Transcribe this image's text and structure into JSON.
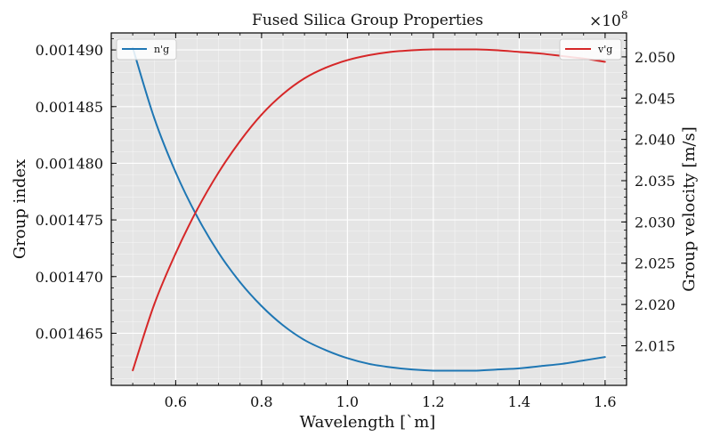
{
  "chart_data": {
    "type": "line",
    "title": "Fused Silica Group Properties",
    "xlabel": "Wavelength [`m]",
    "ylabel_left": "Group index",
    "ylabel_right": "Group velocity [m/s]",
    "right_axis_multiplier": "×10",
    "right_axis_exponent": "8",
    "xlim": [
      0.45,
      1.65
    ],
    "ylim_left": [
      0.0014604,
      0.0014915
    ],
    "ylim_right": [
      2.0102,
      2.0529
    ],
    "x_ticks": [
      0.6,
      0.8,
      1.0,
      1.2,
      1.4,
      1.6
    ],
    "x_tick_labels": [
      "0.6",
      "0.8",
      "1.0",
      "1.2",
      "1.4",
      "1.6"
    ],
    "y_left_ticks": [
      0.001465,
      0.00147,
      0.001475,
      0.00148,
      0.001485,
      0.00149
    ],
    "y_left_tick_labels": [
      "0.001465",
      "0.001470",
      "0.001475",
      "0.001480",
      "0.001485",
      "0.001490"
    ],
    "y_right_ticks": [
      2.015,
      2.02,
      2.025,
      2.03,
      2.035,
      2.04,
      2.045,
      2.05
    ],
    "y_right_tick_labels": [
      "2.015",
      "2.020",
      "2.025",
      "2.030",
      "2.035",
      "2.040",
      "2.045",
      "2.050"
    ],
    "grid": true,
    "series": [
      {
        "name": "n'g",
        "legend_label": "n'g",
        "axis": "left",
        "color": "#1f77b4",
        "legend_position": "top-left",
        "x": [
          0.5,
          0.55,
          0.6,
          0.65,
          0.7,
          0.75,
          0.8,
          0.85,
          0.9,
          0.95,
          1.0,
          1.05,
          1.1,
          1.15,
          1.2,
          1.25,
          1.3,
          1.35,
          1.4,
          1.45,
          1.5,
          1.55,
          1.6
        ],
        "y": [
          0.0014902,
          0.001484,
          0.0014792,
          0.0014753,
          0.0014721,
          0.0014695,
          0.0014674,
          0.0014657,
          0.0014644,
          0.0014635,
          0.0014628,
          0.0014623,
          0.001462,
          0.0014618,
          0.0014617,
          0.0014617,
          0.0014617,
          0.0014618,
          0.0014619,
          0.0014621,
          0.0014623,
          0.0014626,
          0.0014629
        ]
      },
      {
        "name": "v'g",
        "legend_label": "v'g",
        "axis": "right",
        "color": "#d62728",
        "legend_position": "top-right",
        "x": [
          0.5,
          0.55,
          0.6,
          0.65,
          0.7,
          0.75,
          0.8,
          0.85,
          0.9,
          0.95,
          1.0,
          1.05,
          1.1,
          1.15,
          1.2,
          1.25,
          1.3,
          1.35,
          1.4,
          1.45,
          1.5,
          1.55,
          1.6
        ],
        "y": [
          2.012,
          2.02,
          2.0262,
          2.0315,
          2.036,
          2.0398,
          2.043,
          2.0455,
          2.0474,
          2.0487,
          2.0496,
          2.0502,
          2.0506,
          2.0508,
          2.0509,
          2.0509,
          2.0509,
          2.0508,
          2.0506,
          2.0504,
          2.0501,
          2.0498,
          2.0494
        ]
      }
    ]
  }
}
